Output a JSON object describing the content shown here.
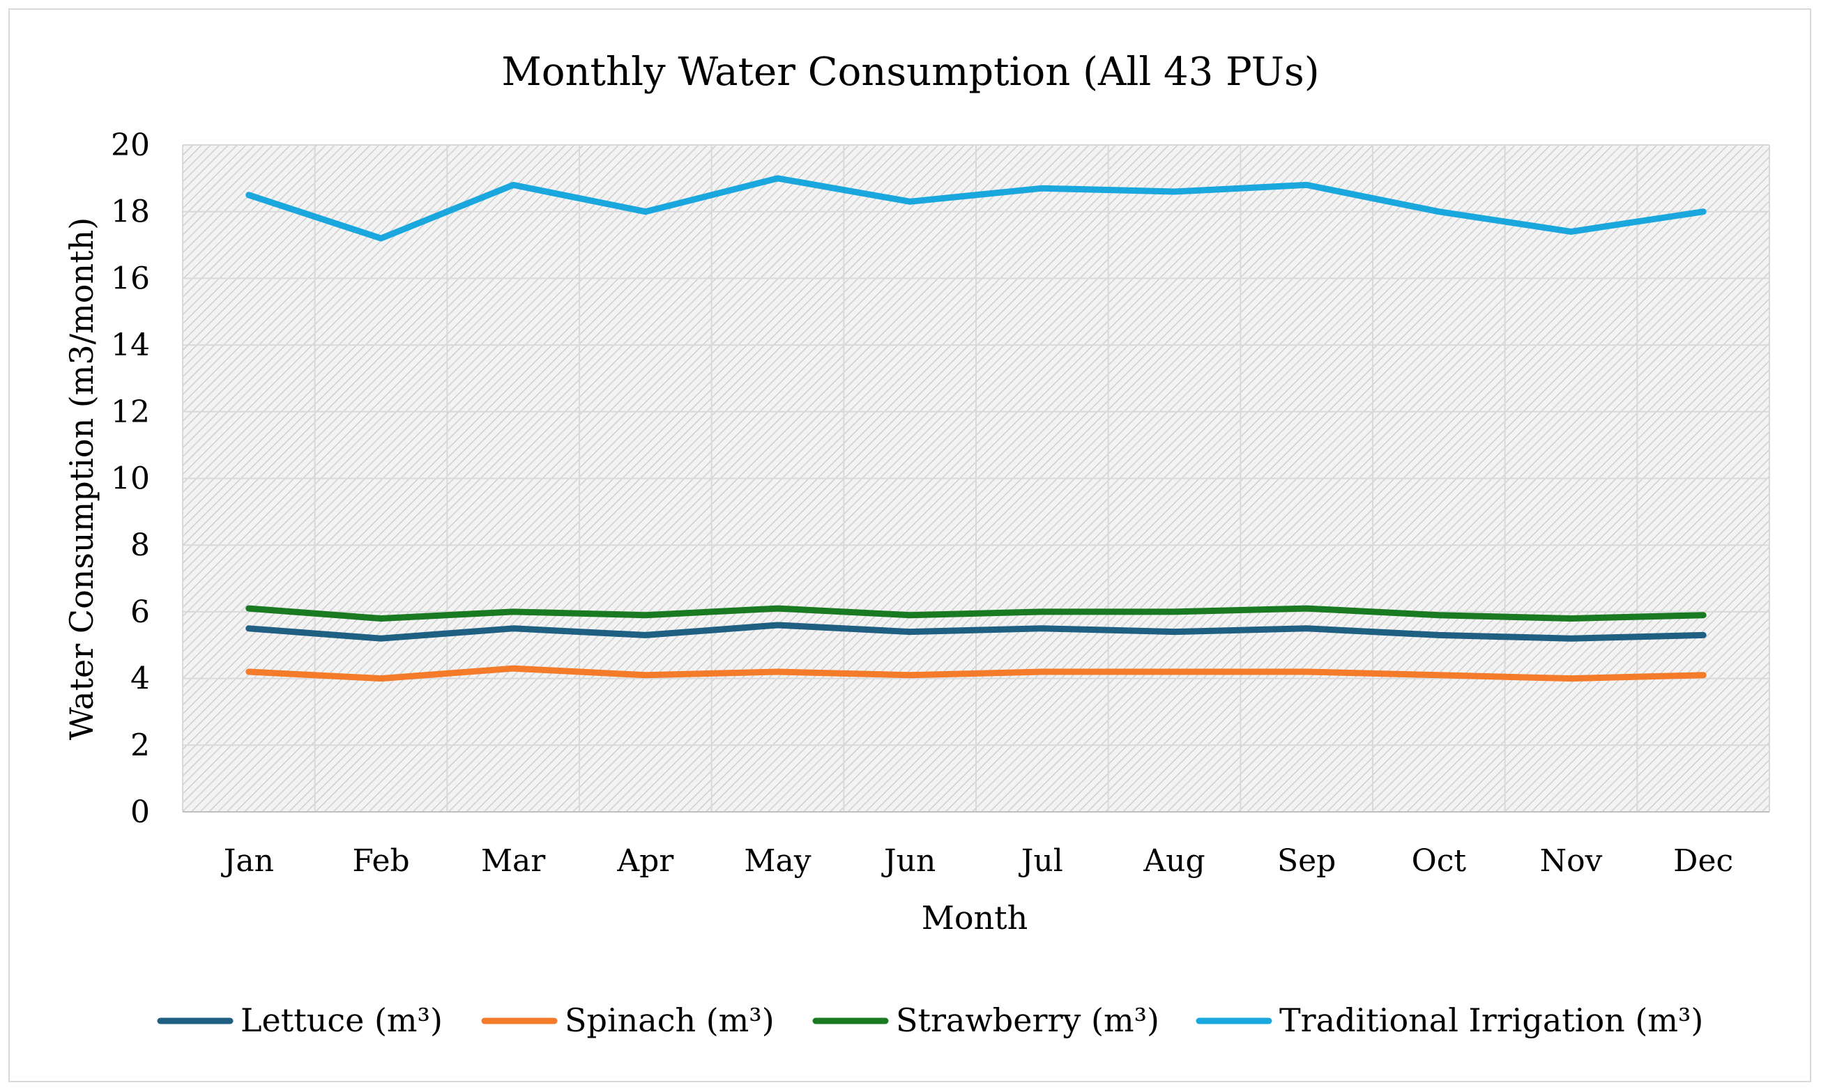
{
  "chart_data": {
    "type": "line",
    "title": "Monthly Water Consumption (All 43 PUs)",
    "xlabel": "Month",
    "ylabel": "Water Consumption (m3/month)",
    "ylim": [
      0,
      20
    ],
    "yticks": [
      0,
      2,
      4,
      6,
      8,
      10,
      12,
      14,
      16,
      18,
      20
    ],
    "ytick_labels": [
      "0",
      "2",
      "4",
      "6",
      "8",
      "10",
      "12",
      "14",
      "16",
      "18",
      "20"
    ],
    "grid": true,
    "legend_position": "bottom",
    "categories": [
      "Jan",
      "Feb",
      "Mar",
      "Apr",
      "May",
      "Jun",
      "Jul",
      "Aug",
      "Sep",
      "Oct",
      "Nov",
      "Dec"
    ],
    "series": [
      {
        "name": "Lettuce (m³)",
        "color": "#1f5f82",
        "values": [
          5.5,
          5.2,
          5.5,
          5.3,
          5.6,
          5.4,
          5.5,
          5.4,
          5.5,
          5.3,
          5.2,
          5.3
        ]
      },
      {
        "name": "Spinach (m³)",
        "color": "#f47b2a",
        "values": [
          4.2,
          4.0,
          4.3,
          4.1,
          4.2,
          4.1,
          4.2,
          4.2,
          4.2,
          4.1,
          4.0,
          4.1
        ]
      },
      {
        "name": "Strawberry (m³)",
        "color": "#1a7a22",
        "values": [
          6.1,
          5.8,
          6.0,
          5.9,
          6.1,
          5.9,
          6.0,
          6.0,
          6.1,
          5.9,
          5.8,
          5.9
        ]
      },
      {
        "name": "Traditional Irrigation (m³)",
        "color": "#1aa7dd",
        "values": [
          18.5,
          17.2,
          18.8,
          18.0,
          19.0,
          18.3,
          18.7,
          18.6,
          18.8,
          18.0,
          17.4,
          18.0
        ]
      }
    ]
  }
}
